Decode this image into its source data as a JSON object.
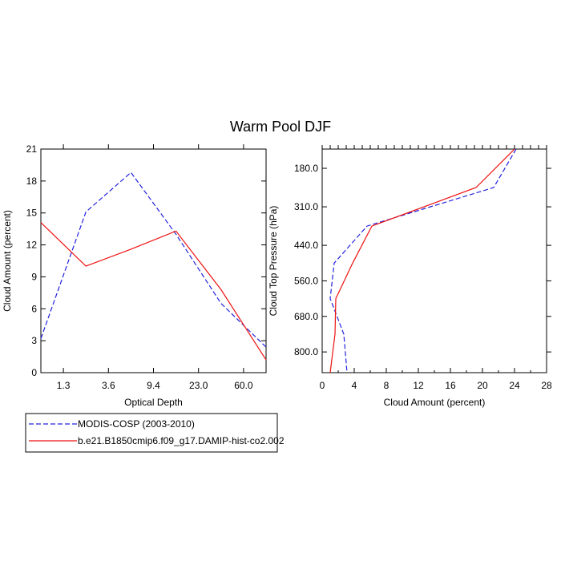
{
  "colors": {
    "modis": "#2222dd",
    "model": "#ee1111",
    "axis": "#000000"
  },
  "chart_data": [
    {
      "type": "line",
      "title": "Warm Pool DJF",
      "xlabel": "Optical Depth",
      "ylabel": "Cloud Amount (percent)",
      "categories": [
        "1.3",
        "3.6",
        "9.4",
        "23.0",
        "60.0"
      ],
      "ylim": [
        0,
        21
      ],
      "yticks": [
        "0",
        "3",
        "6",
        "9",
        "12",
        "15",
        "18",
        "21"
      ],
      "series": [
        {
          "name": "MODIS-COSP (2003-2010)",
          "style": "dashed",
          "x": [
            0,
            1,
            2,
            3,
            4,
            5
          ],
          "values": [
            3.2,
            15.1,
            18.8,
            13.0,
            6.5,
            2.4
          ]
        },
        {
          "name": "b.e21.B1850cmip6.f09_g17.DAMIP-hist-co2.002",
          "style": "solid",
          "x": [
            0,
            1,
            2,
            3,
            4,
            5
          ],
          "values": [
            14.1,
            10.0,
            11.6,
            13.3,
            7.8,
            1.2
          ]
        }
      ]
    },
    {
      "type": "line",
      "xlabel": "Cloud Amount (percent)",
      "ylabel": "Cloud Top Pressure (hPa)",
      "xlim": [
        0,
        28
      ],
      "xticks": [
        "0",
        "4",
        "8",
        "12",
        "16",
        "20",
        "24",
        "28"
      ],
      "ylim": [
        870,
        115
      ],
      "yticks": [
        "180.0",
        "310.0",
        "440.0",
        "560.0",
        "680.0",
        "800.0"
      ],
      "series": [
        {
          "name": "MODIS-COSP (2003-2010)",
          "style": "dashed",
          "x": [
            24.2,
            21.4,
            5.6,
            1.5,
            1.0,
            2.7,
            3.1
          ],
          "values": [
            115,
            245,
            375,
            500,
            620,
            740,
            870
          ]
        },
        {
          "name": "b.e21.B1850cmip6.f09_g17.DAMIP-hist-co2.002",
          "style": "solid",
          "x": [
            24.0,
            19.2,
            6.2,
            3.8,
            1.7,
            1.6,
            1.0
          ],
          "values": [
            115,
            245,
            375,
            500,
            620,
            740,
            870
          ]
        }
      ]
    }
  ]
}
